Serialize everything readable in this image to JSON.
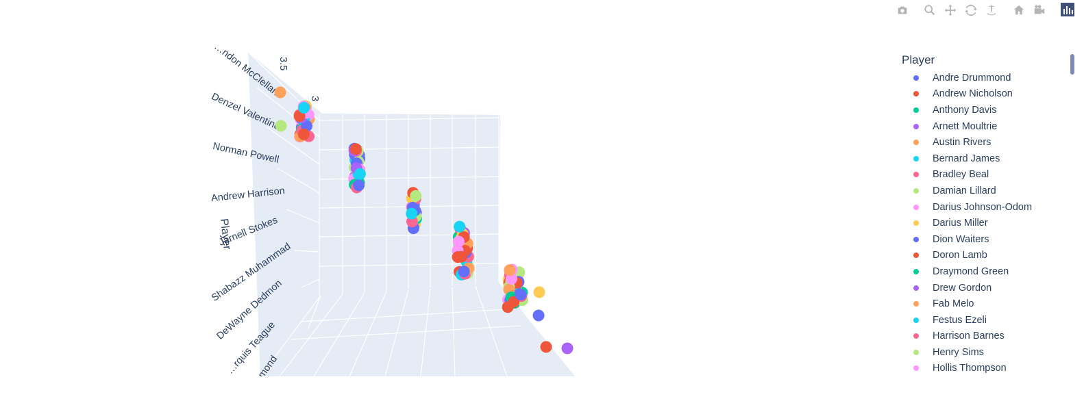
{
  "modebar": {
    "buttons": [
      {
        "name": "camera-icon",
        "title": "Download plot as a png"
      },
      {
        "name": "zoom-icon",
        "title": "Zoom"
      },
      {
        "name": "pan-icon",
        "title": "Pan"
      },
      {
        "name": "orbit-rotation-icon",
        "title": "Orbital rotation"
      },
      {
        "name": "turntable-rotation-icon",
        "title": "Turntable rotation"
      },
      {
        "name": "home-icon",
        "title": "Reset camera to default"
      },
      {
        "name": "camera-last-save-icon",
        "title": "Reset camera to last save"
      }
    ],
    "logo": "plotly-logo-icon"
  },
  "chart_data": {
    "type": "scatter",
    "is_3d": true,
    "axes": {
      "y_label": "Player",
      "y_ticks": [
        "…ndon McClellan",
        "Denzel Valentine",
        "Norman Powell",
        "Andrew Harrison",
        "Jarnell Stokes",
        "Shabazz Muhammad",
        "DeWayne Dedmon",
        "…rquis Teague",
        "…mond"
      ],
      "x_ticks": [
        "3.5",
        "3"
      ],
      "grid": true,
      "background": "#e5ecf6"
    },
    "legend": {
      "title": "Player",
      "placement": "right",
      "items": [
        {
          "name": "Andre Drummond",
          "color": "#636efa"
        },
        {
          "name": "Andrew Nicholson",
          "color": "#EF553B"
        },
        {
          "name": "Anthony Davis",
          "color": "#00cc96"
        },
        {
          "name": "Arnett Moultrie",
          "color": "#ab63fa"
        },
        {
          "name": "Austin Rivers",
          "color": "#FFA15A"
        },
        {
          "name": "Bernard James",
          "color": "#19d3f3"
        },
        {
          "name": "Bradley Beal",
          "color": "#FF6692"
        },
        {
          "name": "Damian Lillard",
          "color": "#B6E880"
        },
        {
          "name": "Darius Johnson-Odom",
          "color": "#FF97FF"
        },
        {
          "name": "Darius Miller",
          "color": "#FECB52"
        },
        {
          "name": "Dion Waiters",
          "color": "#636efa"
        },
        {
          "name": "Doron Lamb",
          "color": "#EF553B"
        },
        {
          "name": "Draymond Green",
          "color": "#00cc96"
        },
        {
          "name": "Drew Gordon",
          "color": "#ab63fa"
        },
        {
          "name": "Fab Melo",
          "color": "#FFA15A"
        },
        {
          "name": "Festus Ezeli",
          "color": "#19d3f3"
        },
        {
          "name": "Harrison Barnes",
          "color": "#FF6692"
        },
        {
          "name": "Henry Sims",
          "color": "#B6E880"
        },
        {
          "name": "Hollis Thompson",
          "color": "#FF97FF"
        }
      ]
    },
    "clusters": [
      {
        "center": [
          444,
          177
        ],
        "spread": [
          14,
          26
        ],
        "count": 34
      },
      {
        "center": [
          521,
          246
        ],
        "spread": [
          9,
          30
        ],
        "count": 26
      },
      {
        "center": [
          604,
          310
        ],
        "spread": [
          7,
          30
        ],
        "count": 22
      },
      {
        "center": [
          676,
          367
        ],
        "spread": [
          16,
          36
        ],
        "count": 34
      },
      {
        "center": [
          752,
          422
        ],
        "spread": [
          22,
          28
        ],
        "count": 38
      }
    ],
    "outliers": [
      {
        "x": 409,
        "y": 135,
        "color": "#FFA15A"
      },
      {
        "x": 410,
        "y": 184,
        "color": "#B6E880"
      },
      {
        "x": 797,
        "y": 507,
        "color": "#EF553B"
      },
      {
        "x": 828,
        "y": 509,
        "color": "#ab63fa"
      },
      {
        "x": 787,
        "y": 427,
        "color": "#FECB52"
      },
      {
        "x": 786,
        "y": 461,
        "color": "#636efa"
      }
    ]
  }
}
